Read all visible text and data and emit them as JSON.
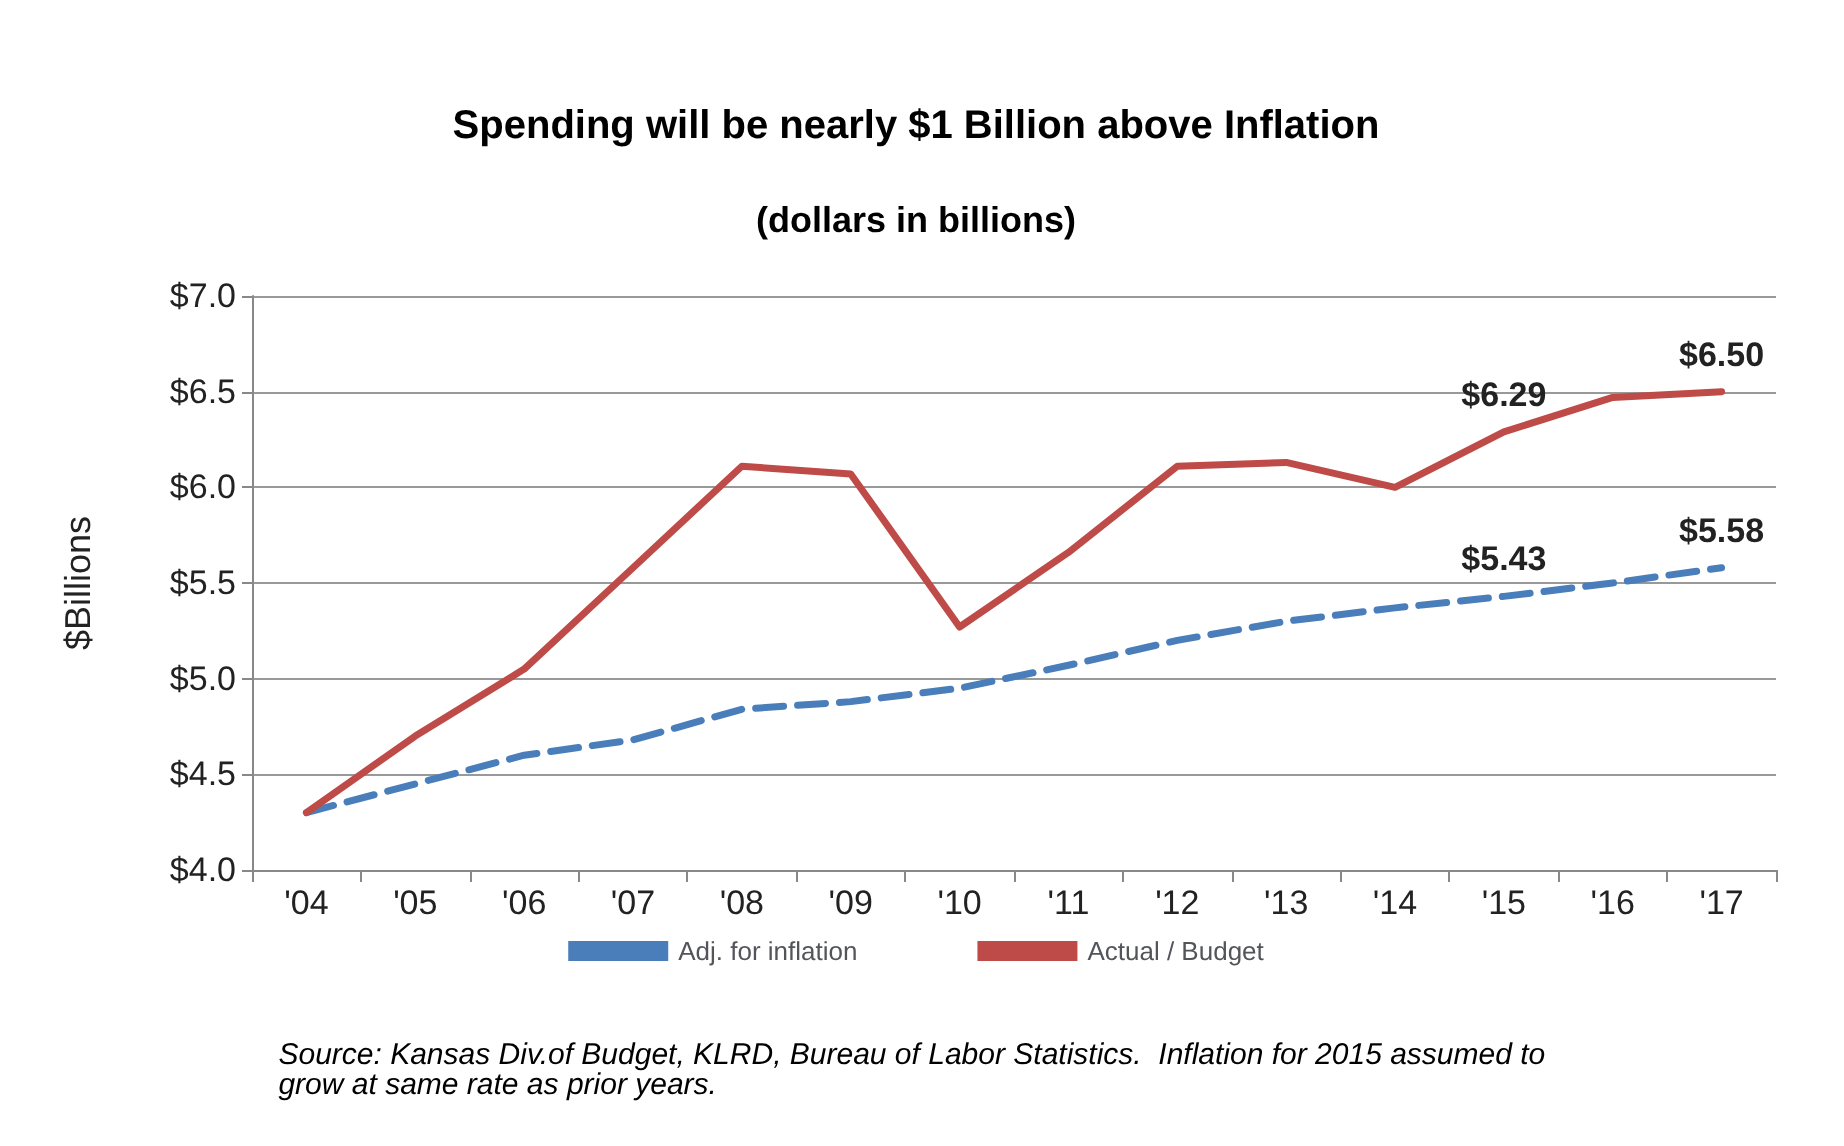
{
  "chart_data": {
    "type": "line",
    "title": "Spending will be nearly $1 Billion above Inflation",
    "subtitle": "(dollars in billions)",
    "ylabel": "$Billions",
    "categories": [
      "'04",
      "'05",
      "'06",
      "'07",
      "'08",
      "'09",
      "'10",
      "'11",
      "'12",
      "'13",
      "'14",
      "'15",
      "'16",
      "'17"
    ],
    "series": [
      {
        "name": "Adj. for inflation",
        "color": "#4a7ebb",
        "line_style": "dashed",
        "values": [
          4.3,
          4.45,
          4.6,
          4.68,
          4.84,
          4.88,
          4.95,
          5.07,
          5.2,
          5.3,
          5.37,
          5.43,
          5.5,
          5.58
        ],
        "value_labels": [
          null,
          null,
          null,
          null,
          null,
          null,
          null,
          null,
          null,
          null,
          null,
          "$5.43",
          null,
          "$5.58"
        ]
      },
      {
        "name": "Actual / Budget",
        "color": "#be4b48",
        "line_style": "solid",
        "values": [
          4.3,
          4.7,
          5.05,
          5.58,
          6.11,
          6.07,
          5.27,
          5.66,
          6.11,
          6.13,
          6.0,
          6.29,
          6.47,
          6.5
        ],
        "value_labels": [
          null,
          null,
          null,
          null,
          null,
          null,
          null,
          null,
          null,
          null,
          null,
          "$6.29",
          null,
          "$6.50"
        ]
      }
    ],
    "ylim": [
      4.0,
      7.0
    ],
    "yticks": [
      {
        "value": 4.0,
        "label": "$4.0"
      },
      {
        "value": 4.5,
        "label": "$4.5"
      },
      {
        "value": 5.0,
        "label": "$5.0"
      },
      {
        "value": 5.5,
        "label": "$5.5"
      },
      {
        "value": 6.0,
        "label": "$6.0"
      },
      {
        "value": 6.5,
        "label": "$6.5"
      },
      {
        "value": 7.0,
        "label": "$7.0"
      }
    ],
    "grid": "y",
    "legend": "bottom",
    "marker": "none",
    "annotations": [
      "Source: Kansas Div.of Budget, KLRD, Bureau of Labor Statistics.  Inflation for 2015 assumed to grow at same rate as prior years."
    ]
  }
}
